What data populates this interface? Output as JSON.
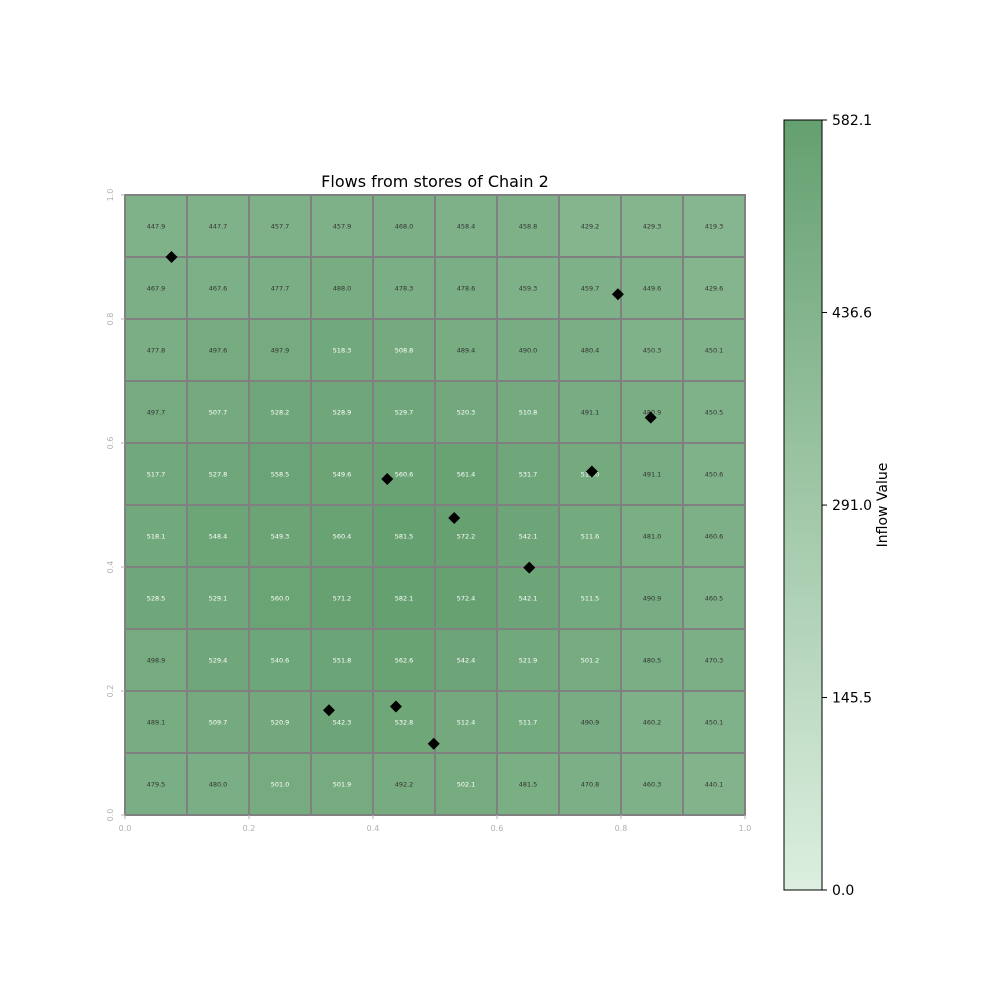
{
  "chart_data": {
    "type": "heatmap",
    "title": "Flows from stores of Chain 2",
    "xlabel": "",
    "ylabel": "",
    "xlim": [
      0.0,
      1.0
    ],
    "ylim": [
      0.0,
      1.0
    ],
    "x_ticks": [
      "0.0",
      "0.2",
      "0.4",
      "0.6",
      "0.8",
      "1.0"
    ],
    "y_ticks": [
      "0.0",
      "0.2",
      "0.4",
      "0.6",
      "0.8",
      "1.0"
    ],
    "grid_rows_top_to_bottom": [
      [
        447.9,
        447.7,
        457.7,
        457.9,
        468.0,
        458.4,
        458.8,
        429.2,
        429.3,
        419.3
      ],
      [
        467.9,
        467.6,
        477.7,
        488.0,
        478.3,
        478.6,
        459.3,
        459.7,
        449.6,
        429.6
      ],
      [
        477.8,
        497.6,
        497.9,
        518.3,
        508.8,
        489.4,
        490.0,
        480.4,
        450.3,
        450.1
      ],
      [
        497.7,
        507.7,
        528.2,
        528.9,
        529.7,
        520.3,
        510.8,
        491.1,
        480.9,
        450.5
      ],
      [
        517.7,
        527.8,
        558.5,
        549.6,
        560.6,
        561.4,
        531.7,
        511.0,
        491.1,
        450.6
      ],
      [
        518.1,
        548.4,
        549.3,
        560.4,
        581.5,
        572.2,
        542.1,
        511.6,
        481.0,
        460.6
      ],
      [
        528.5,
        529.1,
        560.0,
        571.2,
        582.1,
        572.4,
        542.1,
        511.5,
        490.9,
        460.5
      ],
      [
        498.9,
        529.4,
        540.6,
        551.8,
        562.6,
        542.4,
        521.9,
        501.2,
        480.5,
        470.3
      ],
      [
        489.1,
        509.7,
        520.9,
        542.3,
        532.8,
        512.4,
        511.7,
        490.9,
        460.2,
        450.1
      ],
      [
        479.5,
        480.0,
        501.0,
        501.9,
        492.2,
        502.1,
        481.5,
        470.8,
        460.3,
        440.1
      ]
    ],
    "stores": [
      {
        "x": 0.075,
        "y": 0.9
      },
      {
        "x": 0.795,
        "y": 0.84
      },
      {
        "x": 0.848,
        "y": 0.641
      },
      {
        "x": 0.423,
        "y": 0.542
      },
      {
        "x": 0.753,
        "y": 0.554
      },
      {
        "x": 0.531,
        "y": 0.479
      },
      {
        "x": 0.652,
        "y": 0.399
      },
      {
        "x": 0.329,
        "y": 0.169
      },
      {
        "x": 0.437,
        "y": 0.175
      },
      {
        "x": 0.498,
        "y": 0.115
      }
    ],
    "colorbar": {
      "label": "Inflow Value",
      "min": 0.0,
      "max": 582.1,
      "ticks": [
        "0.0",
        "145.5",
        "291.0",
        "436.6",
        "582.1"
      ],
      "color_low": "#dcefe0",
      "color_high": "#65a070"
    },
    "grid_line_color": "#808080",
    "marker_color": "#000000",
    "label_color_dark": "#333333",
    "label_color_light": "#ffffff"
  }
}
